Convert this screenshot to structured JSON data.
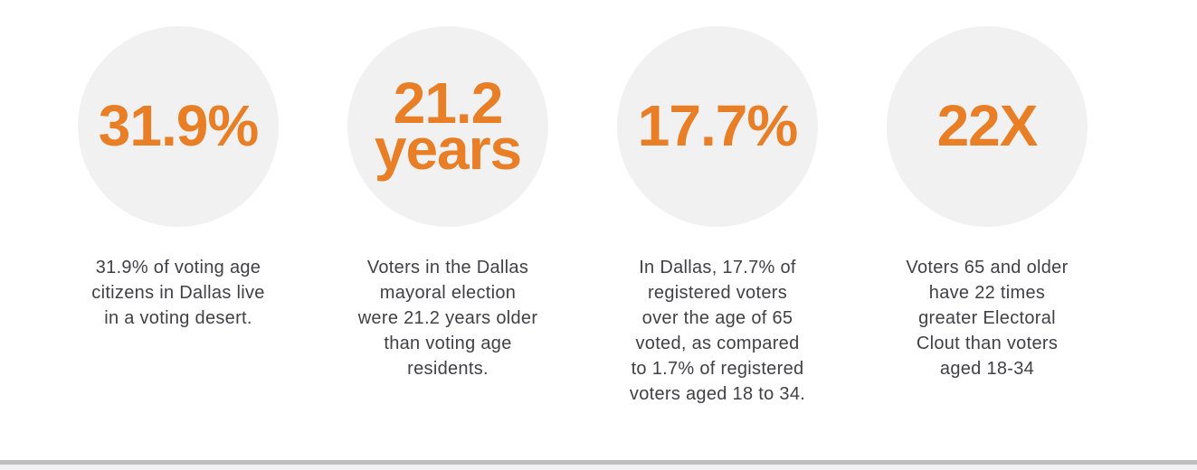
{
  "colors": {
    "page_background": "#ffffff",
    "accent_orange": "#e87e25",
    "circle_background": "#f2f1f1",
    "body_text": "#414044",
    "divider": "#bfbfc1"
  },
  "stats": [
    {
      "value": "31.9%",
      "description": "31.9% of voting age\ncitizens in Dallas live\nin a voting desert."
    },
    {
      "value": "21.2\nyears",
      "description": "Voters in the Dallas\nmayoral election\nwere 21.2 years older\nthan voting age\nresidents."
    },
    {
      "value": "17.7%",
      "description": "In Dallas, 17.7% of\nregistered voters\nover the age of 65\nvoted, as compared\nto 1.7% of registered\nvoters aged 18 to 34."
    },
    {
      "value": "22X",
      "description": "Voters 65 and older\nhave 22 times\ngreater Electoral\nClout than voters\naged 18-34"
    }
  ]
}
